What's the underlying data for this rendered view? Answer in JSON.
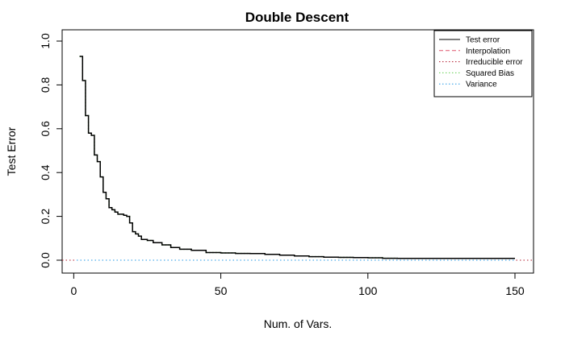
{
  "chart_data": {
    "type": "line",
    "title": "Double Descent",
    "xlabel": "Num. of Vars.",
    "ylabel": "Test Error",
    "xlim": [
      1,
      150
    ],
    "ylim": [
      0,
      1.0
    ],
    "x_ticks": [
      0,
      50,
      100,
      150
    ],
    "y_ticks": [
      0.0,
      0.2,
      0.4,
      0.6,
      0.8,
      1.0
    ],
    "x_tick_labels": [
      "0",
      "50",
      "100",
      "150"
    ],
    "y_tick_labels": [
      "0.0",
      "0.2",
      "0.4",
      "0.6",
      "0.8",
      "1.0"
    ],
    "grid": false,
    "legend_position": "top-right",
    "legend": [
      {
        "label": "Test error",
        "color": "#000000",
        "style": "solid"
      },
      {
        "label": "Interpolation",
        "color": "#DF536B",
        "style": "dashed"
      },
      {
        "label": "Irreducible error",
        "color": "#B2182B",
        "style": "dotted"
      },
      {
        "label": "Squared Bias",
        "color": "#61D04F",
        "style": "dotted"
      },
      {
        "label": "Variance",
        "color": "#2297E6",
        "style": "dotted"
      }
    ],
    "series": [
      {
        "name": "Test error",
        "color": "#000000",
        "style": "solid",
        "points": [
          [
            2,
            0.93
          ],
          [
            3,
            0.82
          ],
          [
            4,
            0.66
          ],
          [
            5,
            0.58
          ],
          [
            6,
            0.57
          ],
          [
            7,
            0.48
          ],
          [
            8,
            0.45
          ],
          [
            9,
            0.38
          ],
          [
            10,
            0.31
          ],
          [
            11,
            0.28
          ],
          [
            12,
            0.24
          ],
          [
            13,
            0.23
          ],
          [
            14,
            0.22
          ],
          [
            15,
            0.21
          ],
          [
            17,
            0.205
          ],
          [
            18,
            0.2
          ],
          [
            19,
            0.17
          ],
          [
            20,
            0.13
          ],
          [
            21,
            0.12
          ],
          [
            22,
            0.11
          ],
          [
            23,
            0.095
          ],
          [
            25,
            0.09
          ],
          [
            27,
            0.08
          ],
          [
            30,
            0.07
          ],
          [
            33,
            0.058
          ],
          [
            36,
            0.05
          ],
          [
            40,
            0.045
          ],
          [
            45,
            0.035
          ],
          [
            50,
            0.033
          ],
          [
            55,
            0.031
          ],
          [
            60,
            0.03
          ],
          [
            65,
            0.027
          ],
          [
            70,
            0.023
          ],
          [
            75,
            0.019
          ],
          [
            80,
            0.016
          ],
          [
            85,
            0.014
          ],
          [
            90,
            0.013
          ],
          [
            95,
            0.012
          ],
          [
            100,
            0.011
          ],
          [
            105,
            0.009
          ],
          [
            110,
            0.008
          ],
          [
            120,
            0.008
          ],
          [
            130,
            0.008
          ],
          [
            140,
            0.008
          ],
          [
            150,
            0.008
          ]
        ]
      },
      {
        "name": "Squared Bias",
        "color": "#61D04F",
        "style": "dotted",
        "value_at_x": "same as Test error"
      },
      {
        "name": "Variance",
        "color": "#2297E6",
        "style": "dotted",
        "constant": 0.0
      },
      {
        "name": "Irreducible error",
        "color": "#B2182B",
        "style": "dotted",
        "constant": 0.0
      }
    ]
  }
}
